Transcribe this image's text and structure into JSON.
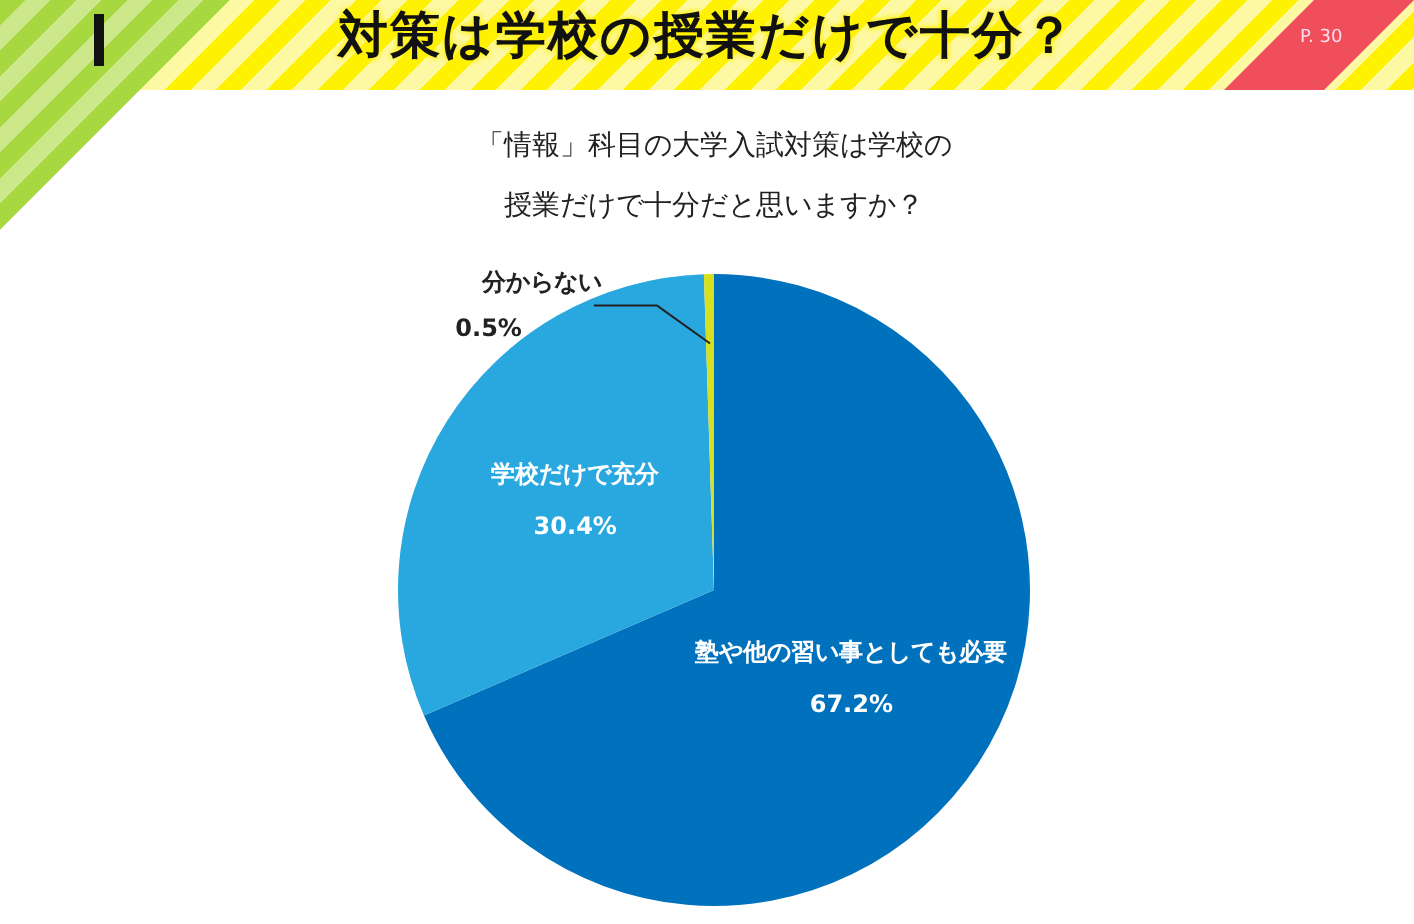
{
  "chart_data": {
    "type": "pie",
    "title": "対策は学校の授業だけで十分？",
    "subtitle": "「情報」科目の大学入試対策は学校の授業だけで十分だと思いますか？",
    "annotations": [
      "P. 30"
    ],
    "categories": [
      "塾や他の習い事としても必要",
      "学校だけで充分",
      "分からない"
    ],
    "values": [
      67.2,
      30.4,
      0.5
    ],
    "colors": [
      "#0071bc",
      "#29a8e0",
      "#d6e01e"
    ],
    "value_labels": [
      "67.2%",
      "30.4%",
      "0.5%"
    ],
    "legend": false
  }
}
